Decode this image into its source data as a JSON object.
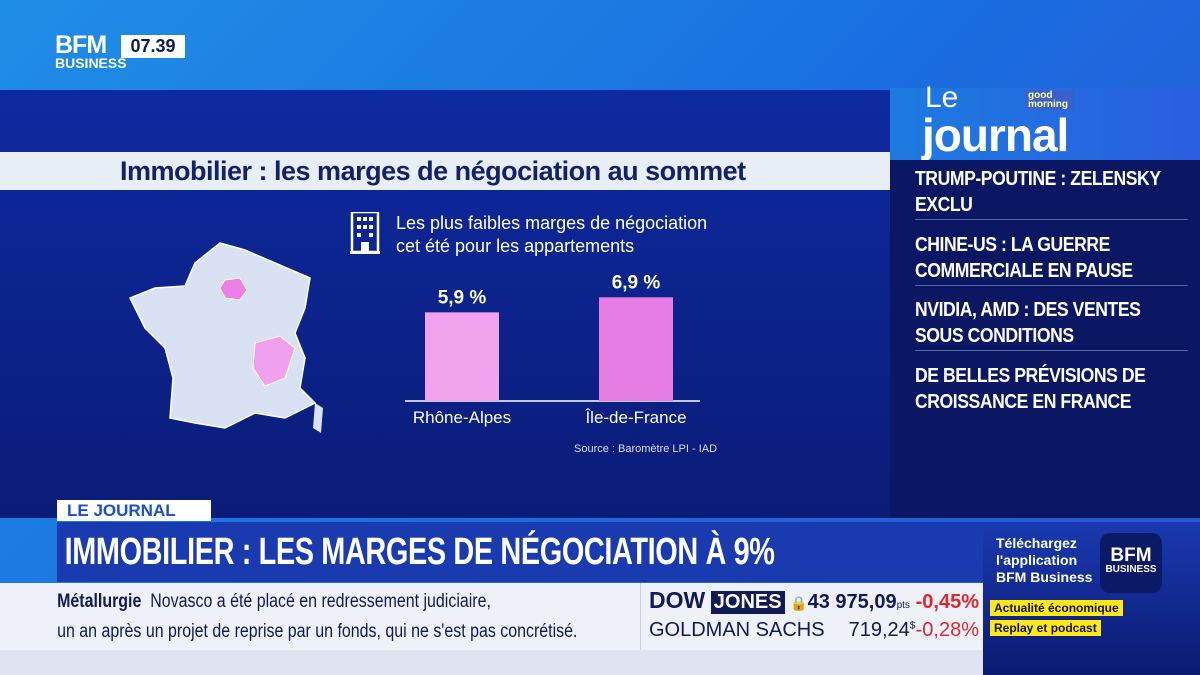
{
  "header": {
    "logo_top": "BFM",
    "logo_bottom": "BUSINESS",
    "time": "07.39"
  },
  "graphic": {
    "title": "Immobilier : les marges de négociation au sommet",
    "subtitle_line1": "Les plus faibles marges de négociation",
    "subtitle_line2": "cet été pour les appartements",
    "source": "Source : Baromètre LPI - IAD",
    "icons": [
      "building-icon",
      "france-map"
    ]
  },
  "chart_data": {
    "type": "bar",
    "categories": [
      "Rhône-Alpes",
      "Île-de-France"
    ],
    "values": [
      5.9,
      6.9
    ],
    "value_labels": [
      "5,9 %",
      "6,9 %"
    ],
    "colors": [
      "#f2a3ee",
      "#e67de4"
    ],
    "grid": false,
    "ylim": [
      0,
      7.5
    ]
  },
  "show": {
    "le": "Le",
    "journal": "journal",
    "badge": "good morning",
    "headlines": [
      "TRUMP-POUTINE : ZELENSKY EXCLU",
      "CHINE-US : LA GUERRE COMMERCIALE EN PAUSE",
      "NVIDIA, AMD : DES VENTES SOUS CONDITIONS",
      "DE BELLES PRÉVISIONS DE CROISSANCE EN FRANCE"
    ]
  },
  "lower_third": {
    "tag": "LE JOURNAL",
    "headline": "IMMOBILIER : LES MARGES DE NÉGOCIATION À 9%"
  },
  "ticker": {
    "topic": "Métallurgie",
    "line1": "Novasco  a été placé en redressement judiciaire,",
    "line2": "un an après un projet de reprise par un fonds, qui ne s'est pas concrétisé."
  },
  "stocks": [
    {
      "name_a": "DOW",
      "name_b": "JONES",
      "value": "43 975,09",
      "unit": "pts",
      "change": "-0,45%"
    },
    {
      "name": "GOLDMAN SACHS",
      "value": "719,24",
      "unit": "$",
      "change": "-0,28%"
    }
  ],
  "promo": {
    "line1": "Téléchargez",
    "line2": "l'application",
    "line3": "BFM Business",
    "logo_top": "BFM",
    "logo_bottom": "BUSINESS",
    "tag1": "Actualité économique",
    "tag2": "Replay et podcast"
  },
  "colors": {
    "navy": "#0b1763",
    "accent": "#1a3ab0",
    "negative": "#e0262f",
    "highlight": "#ffe81a"
  }
}
